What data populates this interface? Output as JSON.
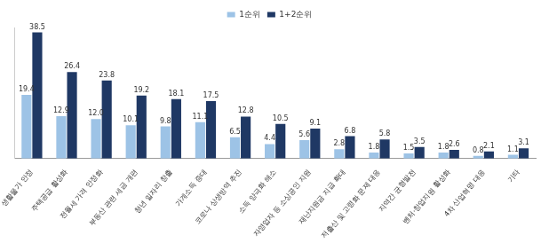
{
  "chart_data": {
    "type": "bar",
    "categories": [
      "생활물가 안정",
      "주택공급 활성화",
      "전월세 가격 안정화",
      "부동산 관련 세금 개편",
      "청년 일자리 창출",
      "가계소득 증대",
      "코로나 상생방역 추진",
      "소득 양극화 해소",
      "자영업자 등 소상공인 지원",
      "재난지원금 지급 확대",
      "저출산 및 고령화 문제 대응",
      "지역간 균형발전",
      "벤처·창업지원 활성화",
      "4차 산업혁명 대응",
      "기타"
    ],
    "series": [
      {
        "name": "1순위",
        "color": "#9dc3e6",
        "values": [
          19.4,
          12.9,
          12.0,
          10.1,
          9.8,
          11.1,
          6.5,
          4.4,
          5.6,
          2.8,
          1.8,
          1.5,
          1.8,
          0.8,
          1.1
        ],
        "value_labels": [
          "19.4",
          "12.9",
          "12.0",
          "10.1",
          "9.8",
          "11.1",
          "6.5",
          "4.4",
          "5.6",
          "2.8",
          "1.8",
          "1.5",
          "1.8",
          "0.8",
          "1.1"
        ]
      },
      {
        "name": "1+2순위",
        "color": "#1f3864",
        "values": [
          38.5,
          26.4,
          23.8,
          19.2,
          18.1,
          17.5,
          12.8,
          10.5,
          9.1,
          6.8,
          5.8,
          3.5,
          2.6,
          2.1,
          3.1
        ],
        "value_labels": [
          "38.5",
          "26.4",
          "23.8",
          "19.2",
          "18.1",
          "17.5",
          "12.8",
          "10.5",
          "9.1",
          "6.8",
          "5.8",
          "3.5",
          "2.6",
          "2.1",
          "3.1"
        ]
      }
    ],
    "ylim": [
      0,
      40
    ],
    "yticks": [],
    "grid": false,
    "legend": "top",
    "data_labels": true,
    "tick_labels": "x"
  }
}
